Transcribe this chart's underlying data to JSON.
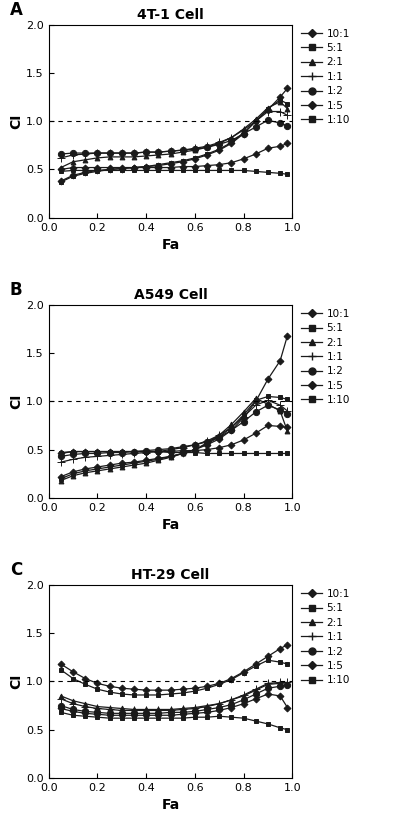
{
  "panels": [
    {
      "label": "A",
      "title": "4T-1 Cell",
      "series": [
        {
          "name": "10:1",
          "fa": [
            0.05,
            0.1,
            0.15,
            0.2,
            0.25,
            0.3,
            0.35,
            0.4,
            0.45,
            0.5,
            0.55,
            0.6,
            0.65,
            0.7,
            0.75,
            0.8,
            0.85,
            0.9,
            0.95,
            0.98
          ],
          "ci": [
            0.38,
            0.44,
            0.47,
            0.49,
            0.5,
            0.51,
            0.52,
            0.53,
            0.54,
            0.56,
            0.58,
            0.61,
            0.65,
            0.7,
            0.77,
            0.87,
            1.0,
            1.12,
            1.25,
            1.34
          ],
          "marker": "D"
        },
        {
          "name": "5:1",
          "fa": [
            0.05,
            0.1,
            0.15,
            0.2,
            0.25,
            0.3,
            0.35,
            0.4,
            0.45,
            0.5,
            0.55,
            0.6,
            0.65,
            0.7,
            0.75,
            0.8,
            0.85,
            0.9,
            0.95,
            0.98
          ],
          "ci": [
            0.37,
            0.43,
            0.46,
            0.48,
            0.5,
            0.51,
            0.52,
            0.53,
            0.55,
            0.57,
            0.59,
            0.62,
            0.66,
            0.71,
            0.78,
            0.88,
            1.0,
            1.13,
            1.22,
            1.18
          ],
          "marker": "s"
        },
        {
          "name": "2:1",
          "fa": [
            0.05,
            0.1,
            0.15,
            0.2,
            0.25,
            0.3,
            0.35,
            0.4,
            0.45,
            0.5,
            0.55,
            0.6,
            0.65,
            0.7,
            0.75,
            0.8,
            0.85,
            0.9,
            0.95,
            0.98
          ],
          "ci": [
            0.52,
            0.58,
            0.6,
            0.62,
            0.63,
            0.63,
            0.63,
            0.64,
            0.65,
            0.66,
            0.68,
            0.7,
            0.73,
            0.77,
            0.83,
            0.92,
            1.02,
            1.14,
            1.2,
            1.13
          ],
          "marker": "^"
        },
        {
          "name": "1:1",
          "fa": [
            0.05,
            0.1,
            0.15,
            0.2,
            0.25,
            0.3,
            0.35,
            0.4,
            0.45,
            0.5,
            0.55,
            0.6,
            0.65,
            0.7,
            0.75,
            0.8,
            0.85,
            0.9,
            0.95,
            0.98
          ],
          "ci": [
            0.62,
            0.65,
            0.66,
            0.67,
            0.67,
            0.67,
            0.67,
            0.68,
            0.68,
            0.69,
            0.7,
            0.72,
            0.74,
            0.78,
            0.83,
            0.91,
            1.0,
            1.1,
            1.1,
            1.06
          ],
          "marker": "+"
        },
        {
          "name": "1:2",
          "fa": [
            0.05,
            0.1,
            0.15,
            0.2,
            0.25,
            0.3,
            0.35,
            0.4,
            0.45,
            0.5,
            0.55,
            0.6,
            0.65,
            0.7,
            0.75,
            0.8,
            0.85,
            0.9,
            0.95,
            0.98
          ],
          "ci": [
            0.66,
            0.67,
            0.67,
            0.67,
            0.67,
            0.67,
            0.67,
            0.68,
            0.68,
            0.69,
            0.7,
            0.71,
            0.73,
            0.76,
            0.8,
            0.87,
            0.94,
            1.01,
            0.98,
            0.95
          ],
          "marker": "o"
        },
        {
          "name": "1:5",
          "fa": [
            0.05,
            0.1,
            0.15,
            0.2,
            0.25,
            0.3,
            0.35,
            0.4,
            0.45,
            0.5,
            0.55,
            0.6,
            0.65,
            0.7,
            0.75,
            0.8,
            0.85,
            0.9,
            0.95,
            0.98
          ],
          "ci": [
            0.5,
            0.52,
            0.52,
            0.52,
            0.52,
            0.52,
            0.52,
            0.52,
            0.52,
            0.52,
            0.53,
            0.53,
            0.54,
            0.55,
            0.57,
            0.61,
            0.66,
            0.72,
            0.74,
            0.77
          ],
          "marker": "D"
        },
        {
          "name": "1:10",
          "fa": [
            0.05,
            0.1,
            0.15,
            0.2,
            0.25,
            0.3,
            0.35,
            0.4,
            0.45,
            0.5,
            0.55,
            0.6,
            0.65,
            0.7,
            0.75,
            0.8,
            0.85,
            0.9,
            0.95,
            0.98
          ],
          "ci": [
            0.48,
            0.49,
            0.49,
            0.49,
            0.49,
            0.49,
            0.49,
            0.49,
            0.49,
            0.49,
            0.49,
            0.49,
            0.49,
            0.49,
            0.49,
            0.49,
            0.48,
            0.47,
            0.46,
            0.45
          ],
          "marker": "s"
        }
      ]
    },
    {
      "label": "B",
      "title": "A549 Cell",
      "series": [
        {
          "name": "10:1",
          "fa": [
            0.05,
            0.1,
            0.15,
            0.2,
            0.25,
            0.3,
            0.35,
            0.4,
            0.45,
            0.5,
            0.55,
            0.6,
            0.65,
            0.7,
            0.75,
            0.8,
            0.85,
            0.9,
            0.95,
            0.98
          ],
          "ci": [
            0.22,
            0.27,
            0.3,
            0.32,
            0.34,
            0.36,
            0.37,
            0.39,
            0.41,
            0.43,
            0.46,
            0.5,
            0.55,
            0.61,
            0.7,
            0.83,
            1.0,
            1.23,
            1.42,
            1.68
          ],
          "marker": "D"
        },
        {
          "name": "5:1",
          "fa": [
            0.05,
            0.1,
            0.15,
            0.2,
            0.25,
            0.3,
            0.35,
            0.4,
            0.45,
            0.5,
            0.55,
            0.6,
            0.65,
            0.7,
            0.75,
            0.8,
            0.85,
            0.9,
            0.95,
            0.98
          ],
          "ci": [
            0.2,
            0.25,
            0.28,
            0.3,
            0.32,
            0.34,
            0.36,
            0.38,
            0.4,
            0.43,
            0.46,
            0.5,
            0.56,
            0.63,
            0.73,
            0.86,
            1.01,
            1.05,
            1.04,
            1.02
          ],
          "marker": "s"
        },
        {
          "name": "2:1",
          "fa": [
            0.05,
            0.1,
            0.15,
            0.2,
            0.25,
            0.3,
            0.35,
            0.4,
            0.45,
            0.5,
            0.55,
            0.6,
            0.65,
            0.7,
            0.75,
            0.8,
            0.85,
            0.9,
            0.95,
            0.98
          ],
          "ci": [
            0.18,
            0.23,
            0.26,
            0.28,
            0.3,
            0.32,
            0.34,
            0.36,
            0.39,
            0.42,
            0.46,
            0.5,
            0.57,
            0.65,
            0.76,
            0.89,
            1.03,
            0.97,
            0.9,
            0.69
          ],
          "marker": "^"
        },
        {
          "name": "1:1",
          "fa": [
            0.05,
            0.1,
            0.15,
            0.2,
            0.25,
            0.3,
            0.35,
            0.4,
            0.45,
            0.5,
            0.55,
            0.6,
            0.65,
            0.7,
            0.75,
            0.8,
            0.85,
            0.9,
            0.95,
            0.98
          ],
          "ci": [
            0.37,
            0.4,
            0.42,
            0.43,
            0.44,
            0.45,
            0.46,
            0.47,
            0.48,
            0.5,
            0.52,
            0.55,
            0.59,
            0.65,
            0.73,
            0.84,
            0.96,
            1.01,
            0.96,
            0.9
          ],
          "marker": "+"
        },
        {
          "name": "1:2",
          "fa": [
            0.05,
            0.1,
            0.15,
            0.2,
            0.25,
            0.3,
            0.35,
            0.4,
            0.45,
            0.5,
            0.55,
            0.6,
            0.65,
            0.7,
            0.75,
            0.8,
            0.85,
            0.9,
            0.95,
            0.98
          ],
          "ci": [
            0.43,
            0.45,
            0.46,
            0.46,
            0.47,
            0.47,
            0.48,
            0.49,
            0.5,
            0.51,
            0.53,
            0.55,
            0.58,
            0.63,
            0.7,
            0.79,
            0.89,
            0.96,
            0.91,
            0.87
          ],
          "marker": "o"
        },
        {
          "name": "1:5",
          "fa": [
            0.05,
            0.1,
            0.15,
            0.2,
            0.25,
            0.3,
            0.35,
            0.4,
            0.45,
            0.5,
            0.55,
            0.6,
            0.65,
            0.7,
            0.75,
            0.8,
            0.85,
            0.9,
            0.95,
            0.98
          ],
          "ci": [
            0.46,
            0.48,
            0.48,
            0.48,
            0.48,
            0.48,
            0.48,
            0.48,
            0.48,
            0.48,
            0.49,
            0.49,
            0.5,
            0.52,
            0.55,
            0.6,
            0.67,
            0.75,
            0.74,
            0.73
          ],
          "marker": "D"
        },
        {
          "name": "1:10",
          "fa": [
            0.05,
            0.1,
            0.15,
            0.2,
            0.25,
            0.3,
            0.35,
            0.4,
            0.45,
            0.5,
            0.55,
            0.6,
            0.65,
            0.7,
            0.75,
            0.8,
            0.85,
            0.9,
            0.95,
            0.98
          ],
          "ci": [
            0.47,
            0.48,
            0.48,
            0.48,
            0.48,
            0.48,
            0.48,
            0.48,
            0.48,
            0.47,
            0.47,
            0.47,
            0.46,
            0.46,
            0.46,
            0.46,
            0.46,
            0.46,
            0.46,
            0.46
          ],
          "marker": "s"
        }
      ]
    },
    {
      "label": "C",
      "title": "HT-29 Cell",
      "series": [
        {
          "name": "10:1",
          "fa": [
            0.05,
            0.1,
            0.15,
            0.2,
            0.25,
            0.3,
            0.35,
            0.4,
            0.45,
            0.5,
            0.55,
            0.6,
            0.65,
            0.7,
            0.75,
            0.8,
            0.85,
            0.9,
            0.95,
            0.98
          ],
          "ci": [
            1.18,
            1.1,
            1.03,
            0.98,
            0.95,
            0.93,
            0.92,
            0.91,
            0.91,
            0.91,
            0.92,
            0.93,
            0.95,
            0.98,
            1.03,
            1.1,
            1.18,
            1.26,
            1.34,
            1.38
          ],
          "marker": "D"
        },
        {
          "name": "5:1",
          "fa": [
            0.05,
            0.1,
            0.15,
            0.2,
            0.25,
            0.3,
            0.35,
            0.4,
            0.45,
            0.5,
            0.55,
            0.6,
            0.65,
            0.7,
            0.75,
            0.8,
            0.85,
            0.9,
            0.95,
            0.98
          ],
          "ci": [
            1.12,
            1.03,
            0.97,
            0.92,
            0.89,
            0.87,
            0.86,
            0.86,
            0.86,
            0.87,
            0.88,
            0.9,
            0.93,
            0.97,
            1.02,
            1.09,
            1.16,
            1.22,
            1.2,
            1.18
          ],
          "marker": "s"
        },
        {
          "name": "2:1",
          "fa": [
            0.05,
            0.1,
            0.15,
            0.2,
            0.25,
            0.3,
            0.35,
            0.4,
            0.45,
            0.5,
            0.55,
            0.6,
            0.65,
            0.7,
            0.75,
            0.8,
            0.85,
            0.9,
            0.95,
            0.98
          ],
          "ci": [
            0.85,
            0.8,
            0.77,
            0.74,
            0.73,
            0.72,
            0.71,
            0.71,
            0.71,
            0.71,
            0.72,
            0.73,
            0.75,
            0.77,
            0.81,
            0.85,
            0.91,
            0.97,
            0.98,
            0.97
          ],
          "marker": "^"
        },
        {
          "name": "1:1",
          "fa": [
            0.05,
            0.1,
            0.15,
            0.2,
            0.25,
            0.3,
            0.35,
            0.4,
            0.45,
            0.5,
            0.55,
            0.6,
            0.65,
            0.7,
            0.75,
            0.8,
            0.85,
            0.9,
            0.95,
            0.98
          ],
          "ci": [
            0.82,
            0.77,
            0.74,
            0.72,
            0.71,
            0.7,
            0.7,
            0.7,
            0.7,
            0.7,
            0.71,
            0.72,
            0.74,
            0.77,
            0.81,
            0.86,
            0.92,
            0.98,
            0.99,
            0.99
          ],
          "marker": "+"
        },
        {
          "name": "1:2",
          "fa": [
            0.05,
            0.1,
            0.15,
            0.2,
            0.25,
            0.3,
            0.35,
            0.4,
            0.45,
            0.5,
            0.55,
            0.6,
            0.65,
            0.7,
            0.75,
            0.8,
            0.85,
            0.9,
            0.95,
            0.98
          ],
          "ci": [
            0.75,
            0.71,
            0.69,
            0.68,
            0.67,
            0.67,
            0.67,
            0.67,
            0.67,
            0.68,
            0.68,
            0.69,
            0.71,
            0.73,
            0.76,
            0.81,
            0.87,
            0.93,
            0.95,
            0.96
          ],
          "marker": "o"
        },
        {
          "name": "1:5",
          "fa": [
            0.05,
            0.1,
            0.15,
            0.2,
            0.25,
            0.3,
            0.35,
            0.4,
            0.45,
            0.5,
            0.55,
            0.6,
            0.65,
            0.7,
            0.75,
            0.8,
            0.85,
            0.9,
            0.95,
            0.98
          ],
          "ci": [
            0.72,
            0.69,
            0.67,
            0.66,
            0.65,
            0.65,
            0.65,
            0.65,
            0.65,
            0.65,
            0.66,
            0.67,
            0.68,
            0.7,
            0.73,
            0.77,
            0.82,
            0.87,
            0.85,
            0.73
          ],
          "marker": "D"
        },
        {
          "name": "1:10",
          "fa": [
            0.05,
            0.1,
            0.15,
            0.2,
            0.25,
            0.3,
            0.35,
            0.4,
            0.45,
            0.5,
            0.55,
            0.6,
            0.65,
            0.7,
            0.75,
            0.8,
            0.85,
            0.9,
            0.95,
            0.98
          ],
          "ci": [
            0.68,
            0.65,
            0.64,
            0.63,
            0.62,
            0.62,
            0.62,
            0.62,
            0.62,
            0.62,
            0.62,
            0.63,
            0.63,
            0.64,
            0.63,
            0.62,
            0.59,
            0.56,
            0.52,
            0.5
          ],
          "marker": "s"
        }
      ]
    }
  ],
  "line_color": "#1a1a1a",
  "marker_color": "#1a1a1a",
  "xlabel": "Fa",
  "ylabel": "CI",
  "ylim": [
    0.0,
    2.0
  ],
  "xlim": [
    0.0,
    1.0
  ],
  "yticks": [
    0.0,
    0.5,
    1.0,
    1.5,
    2.0
  ],
  "xticks": [
    0.0,
    0.2,
    0.4,
    0.6,
    0.8,
    1.0
  ],
  "hline_y": 1.0,
  "legend_labels": [
    "10:1",
    "5:1",
    "2:1",
    "1:1",
    "1:2",
    "1:5",
    "1:10"
  ],
  "legend_markers": [
    "D",
    "s",
    "^",
    "+",
    "o",
    "D",
    "s"
  ]
}
